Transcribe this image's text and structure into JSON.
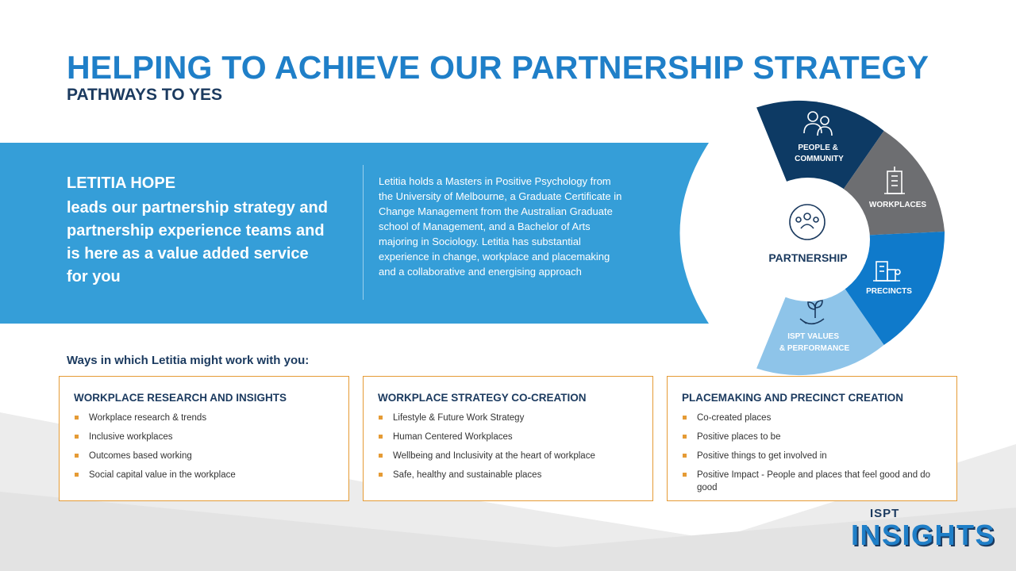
{
  "header": {
    "title": "HELPING TO ACHIEVE OUR PARTNERSHIP STRATEGY",
    "subtitle": "PATHWAYS TO YES"
  },
  "bio": {
    "name": "LETITIA HOPE",
    "tagline": "leads our partnership strategy and partnership experience teams and is here as a value added service for you",
    "description": "Letitia holds a Masters in Positive Psychology from the University of Melbourne, a Graduate Certificate in Change Management from the Australian Graduate school of Management, and a Bachelor of Arts majoring in Sociology. Letitia has substantial experience in change, workplace and placemaking and a collaborative and energising approach"
  },
  "wheel": {
    "center_label": "PARTNERSHIP",
    "center_icon": "people-cycle-icon",
    "segments": [
      {
        "line1": "PEOPLE &",
        "line2": "COMMUNITY",
        "icon": "people-icon",
        "color": "#0d3a64"
      },
      {
        "line1": "WORKPLACES",
        "line2": "",
        "icon": "office-building-icon",
        "color": "#6d6e71"
      },
      {
        "line1": "PRECINCTS",
        "line2": "",
        "icon": "buildings-icon",
        "color": "#0f7acb"
      },
      {
        "line1": "ISPT VALUES",
        "line2": "& PERFORMANCE",
        "icon": "hand-plant-icon",
        "color": "#8ec4e9"
      }
    ]
  },
  "ways": {
    "title": "Ways in which Letitia might work with you:",
    "cards": [
      {
        "title": "WORKPLACE RESEARCH AND INSIGHTS",
        "items": [
          "Workplace research & trends",
          "Inclusive workplaces",
          "Outcomes based working",
          "Social capital value in the workplace"
        ]
      },
      {
        "title": "WORKPLACE STRATEGY CO-CREATION",
        "items": [
          "Lifestyle & Future Work Strategy",
          "Human Centered Workplaces",
          "Wellbeing and Inclusivity at the heart of workplace",
          "Safe, healthy and sustainable places"
        ]
      },
      {
        "title": "PLACEMAKING AND PRECINCT CREATION",
        "items": [
          "Co-created places",
          "Positive places to be",
          "Positive things to get involved in",
          "Positive Impact - People and places that feel good and do good"
        ]
      }
    ]
  },
  "logo": {
    "top": "ISPT",
    "main": "INSIGHTS"
  },
  "colors": {
    "accent": "#1f7fc8",
    "banner": "#359ed8",
    "navy": "#1b3a5f",
    "orange": "#e59b35"
  }
}
